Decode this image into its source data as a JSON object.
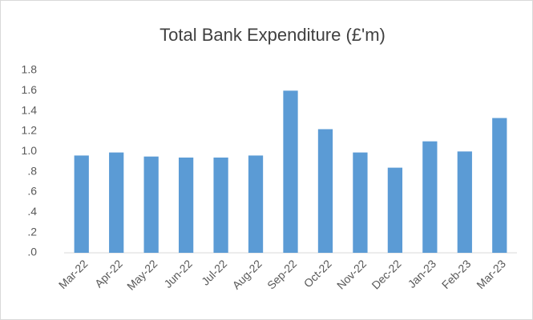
{
  "chart_data": {
    "type": "bar",
    "title": "Total Bank Expenditure (£'m)",
    "categories": [
      "Mar-22",
      "Apr-22",
      "May-22",
      "Jun-22",
      "Jul-22",
      "Aug-22",
      "Sep-22",
      "Oct-22",
      "Nov-22",
      "Dec-22",
      "Jan-23",
      "Feb-23",
      "Mar-23"
    ],
    "values": [
      0.96,
      0.99,
      0.95,
      0.94,
      0.94,
      0.96,
      1.6,
      1.22,
      0.99,
      0.84,
      1.1,
      1.0,
      1.33
    ],
    "color": "#5b9bd5",
    "ylim": [
      0,
      1.8
    ],
    "yticks": [
      {
        "value": 0,
        "label": ".0"
      },
      {
        "value": 0.2,
        "label": ".2"
      },
      {
        "value": 0.4,
        "label": ".4"
      },
      {
        "value": 0.6,
        "label": ".6"
      },
      {
        "value": 0.8,
        "label": ".8"
      },
      {
        "value": 1.0,
        "label": "1.0"
      },
      1.2,
      1.4,
      1.6,
      1.8
    ],
    "grid": false
  }
}
